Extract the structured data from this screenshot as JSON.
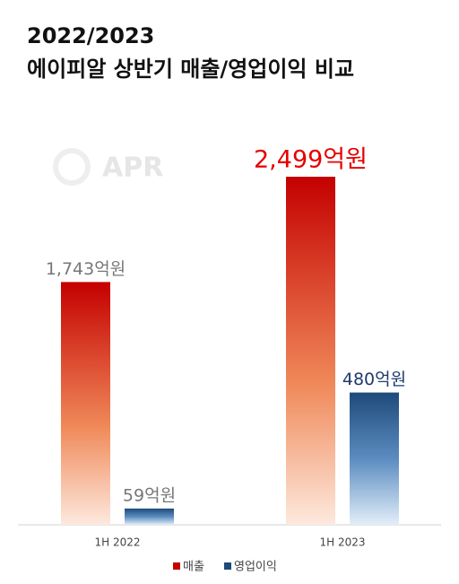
{
  "chart_data": {
    "type": "bar",
    "title": "2022/2023",
    "subtitle": "에이피알 상반기 매출/영업이익 비교",
    "watermark": "APR",
    "categories": [
      "1H 2022",
      "1H 2023"
    ],
    "series": [
      {
        "name": "매출",
        "color": "#c40000",
        "values": [
          1743,
          2499
        ],
        "value_labels": [
          "1,743억원",
          "2,499억원"
        ],
        "label_colors": [
          "#777777",
          "#e60000"
        ]
      },
      {
        "name": "영업이익",
        "color": "#1e4a7a",
        "values": [
          59,
          480
        ],
        "value_labels": [
          "59억원",
          "480억원"
        ],
        "label_colors": [
          "#777777",
          "#1f3b6e"
        ]
      }
    ]
  }
}
